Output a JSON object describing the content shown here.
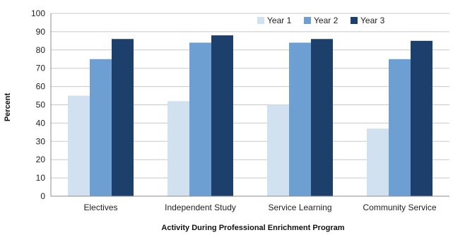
{
  "chart_data": {
    "type": "bar",
    "title": "",
    "xlabel": "Activity During Professional Enrichment Program",
    "ylabel": "Percent",
    "ylim": [
      0,
      100
    ],
    "yticks": [
      0,
      10,
      20,
      30,
      40,
      50,
      60,
      70,
      80,
      90,
      100
    ],
    "grid": true,
    "legend_position": "top-right",
    "categories": [
      "Electives",
      "Independent Study",
      "Service Learning",
      "Community Service"
    ],
    "series": [
      {
        "name": "Year 1",
        "color": "#d2e1f0",
        "values": [
          55,
          52,
          50,
          37
        ]
      },
      {
        "name": "Year 2",
        "color": "#6e9fd2",
        "values": [
          75,
          84,
          84,
          75
        ]
      },
      {
        "name": "Year 3",
        "color": "#1c3f6b",
        "values": [
          86,
          88,
          86,
          85
        ]
      }
    ]
  }
}
